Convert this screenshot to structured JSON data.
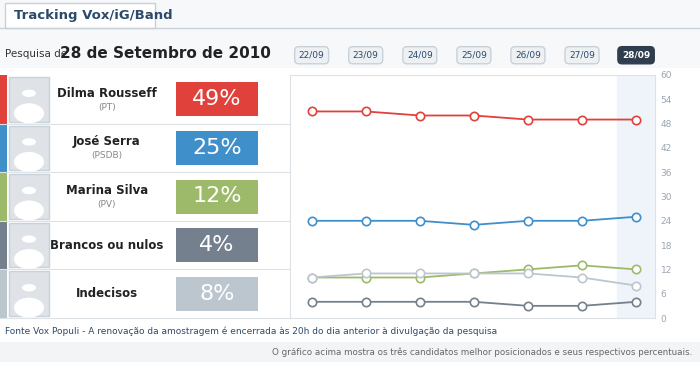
{
  "header": {
    "title": "Tracking Vox/iG/Band",
    "survey_prefix": "Pesquisa de",
    "survey_date": "28 de Setembro de 2010"
  },
  "chart_data": {
    "type": "line",
    "categories": [
      "22/09",
      "23/09",
      "24/09",
      "25/09",
      "26/09",
      "27/09",
      "28/09"
    ],
    "ylim": [
      0,
      60
    ],
    "yticks": [
      0,
      6,
      12,
      18,
      24,
      30,
      36,
      42,
      48,
      54,
      60
    ],
    "grid": false,
    "marker": "o",
    "series": [
      {
        "name": "Dilma Rousseff",
        "party": "(PT)",
        "color": "#e0413a",
        "values": [
          51,
          51,
          50,
          50,
          49,
          49,
          49
        ],
        "summary_value": 49,
        "summary_label": "49%"
      },
      {
        "name": "José Serra",
        "party": "(PSDB)",
        "color": "#3f8fcb",
        "values": [
          24,
          24,
          24,
          23,
          24,
          24,
          25
        ],
        "summary_value": 25,
        "summary_label": "25%"
      },
      {
        "name": "Marina Silva",
        "party": "(PV)",
        "color": "#9dba6a",
        "values": [
          10,
          10,
          10,
          11,
          12,
          13,
          12
        ],
        "summary_value": 12,
        "summary_label": "12%"
      },
      {
        "name": "Brancos ou nulos",
        "color": "#74808d",
        "values": [
          4,
          4,
          4,
          4,
          3,
          3,
          4
        ],
        "summary_value": 4,
        "summary_label": "4%"
      },
      {
        "name": "Indecisos",
        "color": "#bcc6cf",
        "values": [
          10,
          11,
          11,
          11,
          11,
          10,
          8
        ],
        "summary_value": 8,
        "summary_label": "8%"
      }
    ]
  },
  "footer": {
    "source": "Fonte Vox Populi - A renovação da amostragem é encerrada às 20h do dia anterior à divulgação da pesquisa",
    "note": "O gráfico acima mostra os três candidatos melhor posicionados e seus respectivos percentuais."
  }
}
